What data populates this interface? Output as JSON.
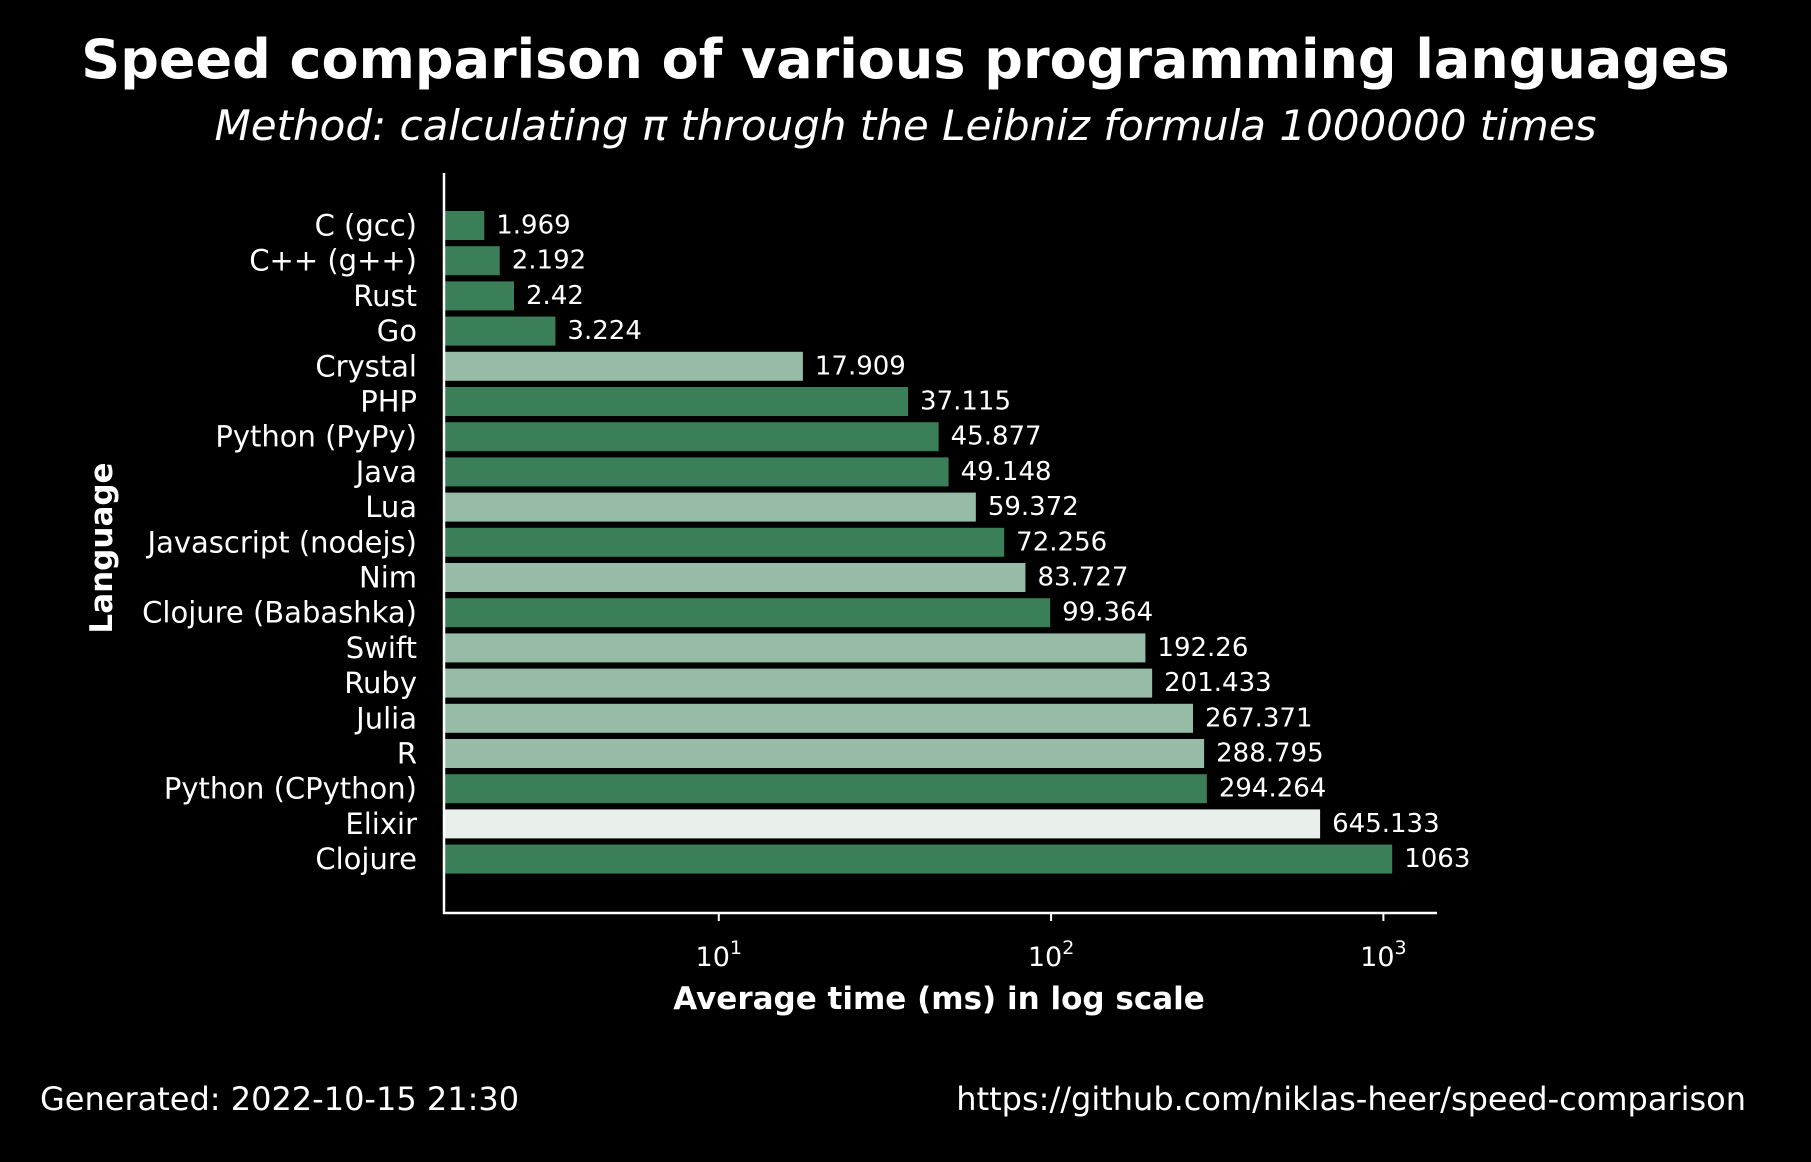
{
  "colors": {
    "background": "#000000",
    "text": "#ffffff",
    "dark_green": "#3b7f58",
    "light_green": "#96bca7",
    "pale_green": "#e9f0eb"
  },
  "chart_data": {
    "type": "bar",
    "orientation": "horizontal",
    "title": "Speed comparison of various programming languages",
    "subtitle": "Method: calculating π through the Leibniz formula 1000000 times",
    "xlabel": "Average time (ms) in log scale",
    "ylabel": "Language",
    "x_scale": "log",
    "xlim": [
      1.5,
      1450
    ],
    "x_ticks": [
      {
        "value": 10,
        "base": "10",
        "exp": "1"
      },
      {
        "value": 100,
        "base": "10",
        "exp": "2"
      },
      {
        "value": 1000,
        "base": "10",
        "exp": "3"
      }
    ],
    "grid": false,
    "categories": [
      "C (gcc)",
      "C++ (g++)",
      "Rust",
      "Go",
      "Crystal",
      "PHP",
      "Python (PyPy)",
      "Java",
      "Lua",
      "Javascript (nodejs)",
      "Nim",
      "Clojure (Babashka)",
      "Swift",
      "Ruby",
      "Julia",
      "R",
      "Python (CPython)",
      "Elixir",
      "Clojure"
    ],
    "values": [
      1.969,
      2.192,
      2.42,
      3.224,
      17.909,
      37.115,
      45.877,
      49.148,
      59.372,
      72.256,
      83.727,
      99.364,
      192.26,
      201.433,
      267.371,
      288.795,
      294.264,
      645.133,
      1063
    ],
    "value_labels": [
      "1.969",
      "2.192",
      "2.42",
      "3.224",
      "17.909",
      "37.115",
      "45.877",
      "49.148",
      "59.372",
      "72.256",
      "83.727",
      "99.364",
      "192.26",
      "201.433",
      "267.371",
      "288.795",
      "294.264",
      "645.133",
      "1063"
    ],
    "bar_colors": [
      "#3b7f58",
      "#3b7f58",
      "#3b7f58",
      "#3b7f58",
      "#96bca7",
      "#3b7f58",
      "#3b7f58",
      "#3b7f58",
      "#96bca7",
      "#3b7f58",
      "#96bca7",
      "#3b7f58",
      "#96bca7",
      "#96bca7",
      "#96bca7",
      "#96bca7",
      "#3b7f58",
      "#e9f0eb",
      "#3b7f58"
    ]
  },
  "footer": {
    "generated": "Generated: 2022-10-15 21:30",
    "url": "https://github.com/niklas-heer/speed-comparison"
  }
}
